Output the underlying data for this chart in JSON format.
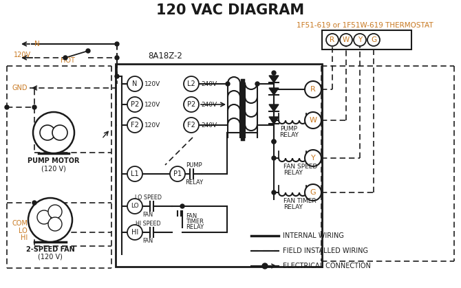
{
  "title": "120 VAC DIAGRAM",
  "thermostat_label": "1F51-619 or 1F51W-619 THERMOSTAT",
  "box_label": "8A18Z-2",
  "thermostat_terminals": [
    "R",
    "W",
    "Y",
    "G"
  ],
  "orange": "#c87820",
  "black": "#1a1a1a",
  "white": "#ffffff",
  "legend_internal": "INTERNAL WIRING",
  "legend_field": "FIELD INSTALLED WIRING",
  "legend_elec": "ELECTRICAL CONNECTION"
}
